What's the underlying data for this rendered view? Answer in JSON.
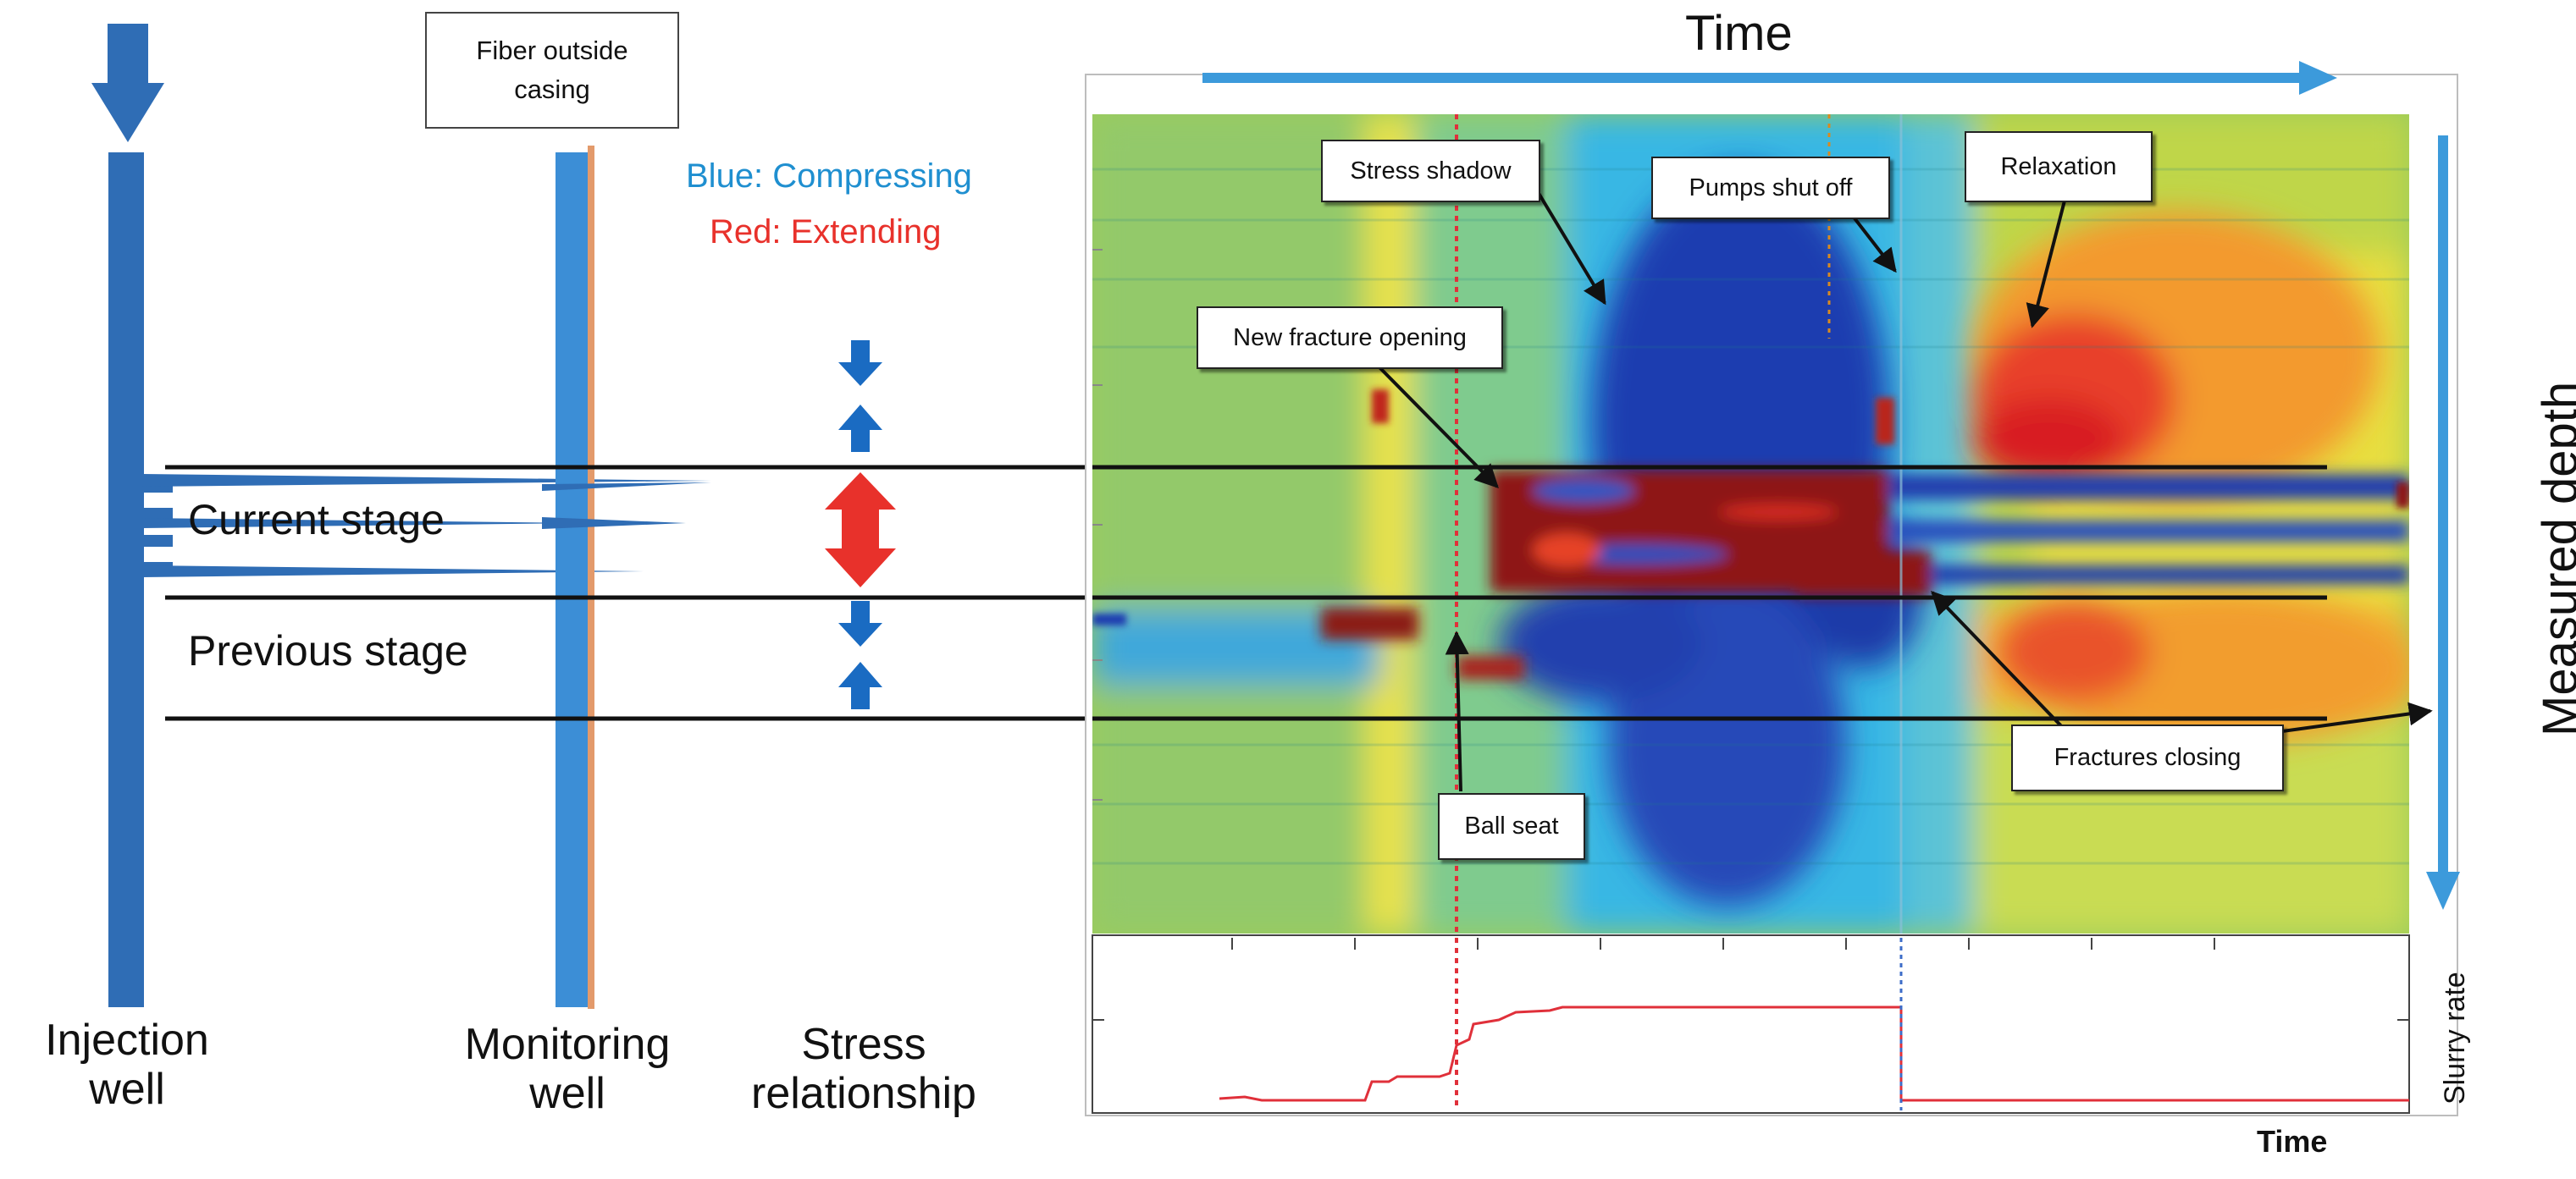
{
  "colors": {
    "injection_well": "#2F6DB5",
    "monitoring_fiber": "#3C8ED6",
    "casing": "#E39A6B",
    "compressing_text": "#1F8FD0",
    "extending_text": "#E8312B",
    "arrow_blue": "#1A6BC2",
    "arrow_red": "#E8312B",
    "time_arrow": "#3C9ADB",
    "slurry_line": "#E0303A"
  },
  "left": {
    "fiber_box": "Fiber outside casing",
    "legend_blue": "Blue: Compressing",
    "legend_red": "Red: Extending",
    "current_stage": "Current stage",
    "previous_stage": "Previous stage",
    "injection_label_1": "Injection",
    "injection_label_2": "well",
    "monitoring_label_1": "Monitoring",
    "monitoring_label_2": "well",
    "stress_label_1": "Stress",
    "stress_label_2": "relationship"
  },
  "right": {
    "time_title": "Time",
    "depth_title": "Measured depth",
    "slurry_label": "Slurry rate",
    "time_bottom": "Time",
    "callouts": {
      "stress_shadow": "Stress shadow",
      "pumps_shut_off": "Pumps shut off",
      "relaxation": "Relaxation",
      "new_fracture_opening": "New fracture opening",
      "ball_seat": "Ball seat",
      "fractures_closing": "Fractures closing"
    }
  }
}
